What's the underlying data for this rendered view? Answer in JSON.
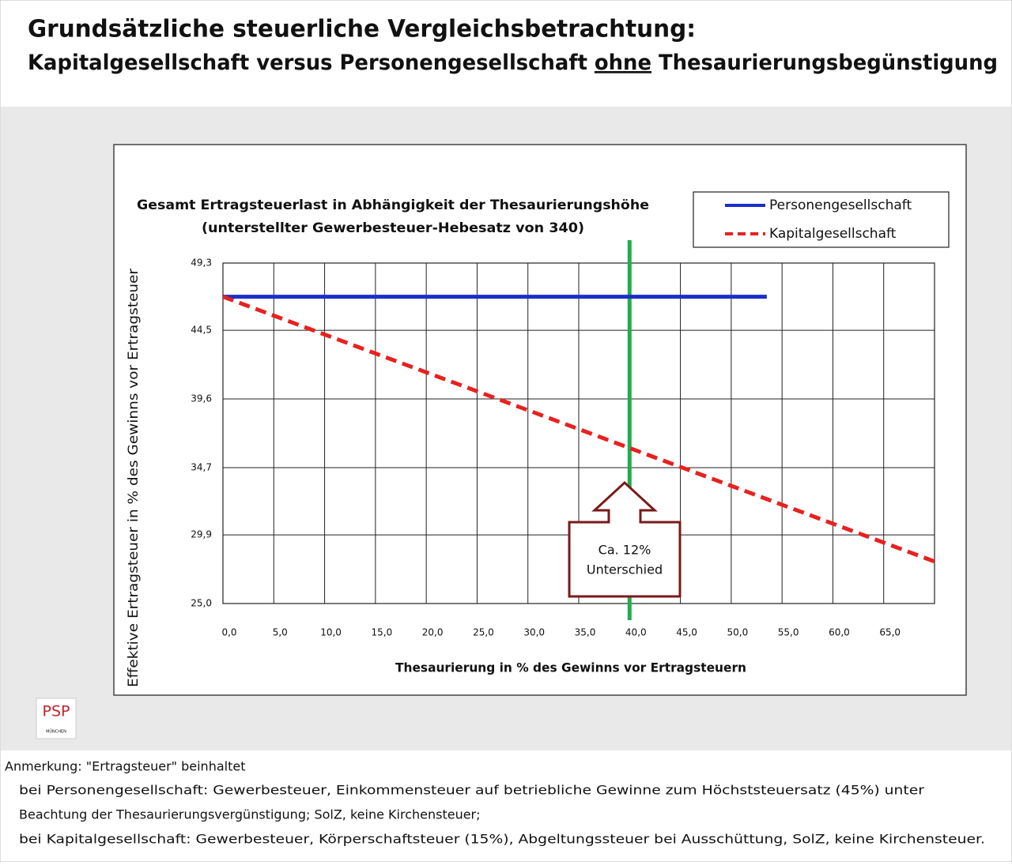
{
  "header": {
    "title": "Grundsätzliche steuerliche Vergleichsbetrachtung:",
    "subtitle_parts": [
      "Kapitalgesellschaft versus Personengesellschaft ",
      "ohne",
      " Thesaurierungsbegünstigung"
    ]
  },
  "chart_data": {
    "type": "line",
    "title": [
      "Gesamt Ertragsteuerlast in Abhängigkeit der Thesaurierungshöhe",
      "(unterstellter Gewerbesteuer-Hebesatz von 340)"
    ],
    "x_label": "Thesaurierung in % des Gewinns vor Ertragsteuern",
    "y_label": "Effektive Ertragsteuer in % des Gewinns vor Ertragsteuer",
    "xlim": [
      0,
      70
    ],
    "xticks": [
      {
        "value": 0,
        "label": "0,0"
      },
      {
        "value": 5,
        "label": "5,0"
      },
      {
        "value": 10,
        "label": "10,0"
      },
      {
        "value": 15,
        "label": "15,0"
      },
      {
        "value": 20,
        "label": "20,0"
      },
      {
        "value": 25,
        "label": "25,0"
      },
      {
        "value": 30,
        "label": "30,0"
      },
      {
        "value": 35,
        "label": "35,0"
      },
      {
        "value": 40,
        "label": "40,0"
      },
      {
        "value": 45,
        "label": "45,0"
      },
      {
        "value": 50,
        "label": "50,0"
      },
      {
        "value": 55,
        "label": "55,0"
      },
      {
        "value": 60,
        "label": "60,0"
      },
      {
        "value": 65,
        "label": "65,0"
      }
    ],
    "ylim": [
      25,
      49.3
    ],
    "yticks": [
      {
        "value": 25,
        "label": "25,0"
      },
      {
        "value": 29.9,
        "label": "29,9"
      },
      {
        "value": 34.7,
        "label": "34,7"
      },
      {
        "value": 39.6,
        "label": "39,6"
      },
      {
        "value": 44.5,
        "label": "44,5"
      },
      {
        "value": 49.3,
        "label": "49,3"
      }
    ],
    "grid": true,
    "legend": "top-right",
    "series": [
      {
        "name": "Personengesellschaft",
        "color": "#1a2fc8",
        "dash": false,
        "x": [
          0,
          53.5
        ],
        "values": [
          46.9,
          46.9
        ]
      },
      {
        "name": "Kapitalgesellschaft",
        "color": "#e8211f",
        "dash": true,
        "x": [
          0,
          70
        ],
        "values": [
          46.9,
          28.0
        ]
      }
    ],
    "vline": {
      "x": 40,
      "color": "#1fae4b"
    },
    "annotation": [
      "Ca. 12%",
      "Unterschied"
    ]
  },
  "logo": {
    "text": "PSP",
    "subtext": "MÜNCHEN"
  },
  "footnote": [
    "Anmerkung: \"Ertragsteuer\" beinhaltet",
    "bei Personengesellschaft:  Gewerbesteuer, Einkommensteuer auf betriebliche Gewinne zum Höchststeuersatz (45%) unter",
    "Beachtung der Thesaurierungsvergünstigung; SolZ, keine Kirchensteuer;",
    "bei Kapitalgesellschaft: Gewerbesteuer, Körperschaftsteuer (15%), Abgeltungssteuer bei Ausschüttung, SolZ, keine Kirchensteuer."
  ]
}
